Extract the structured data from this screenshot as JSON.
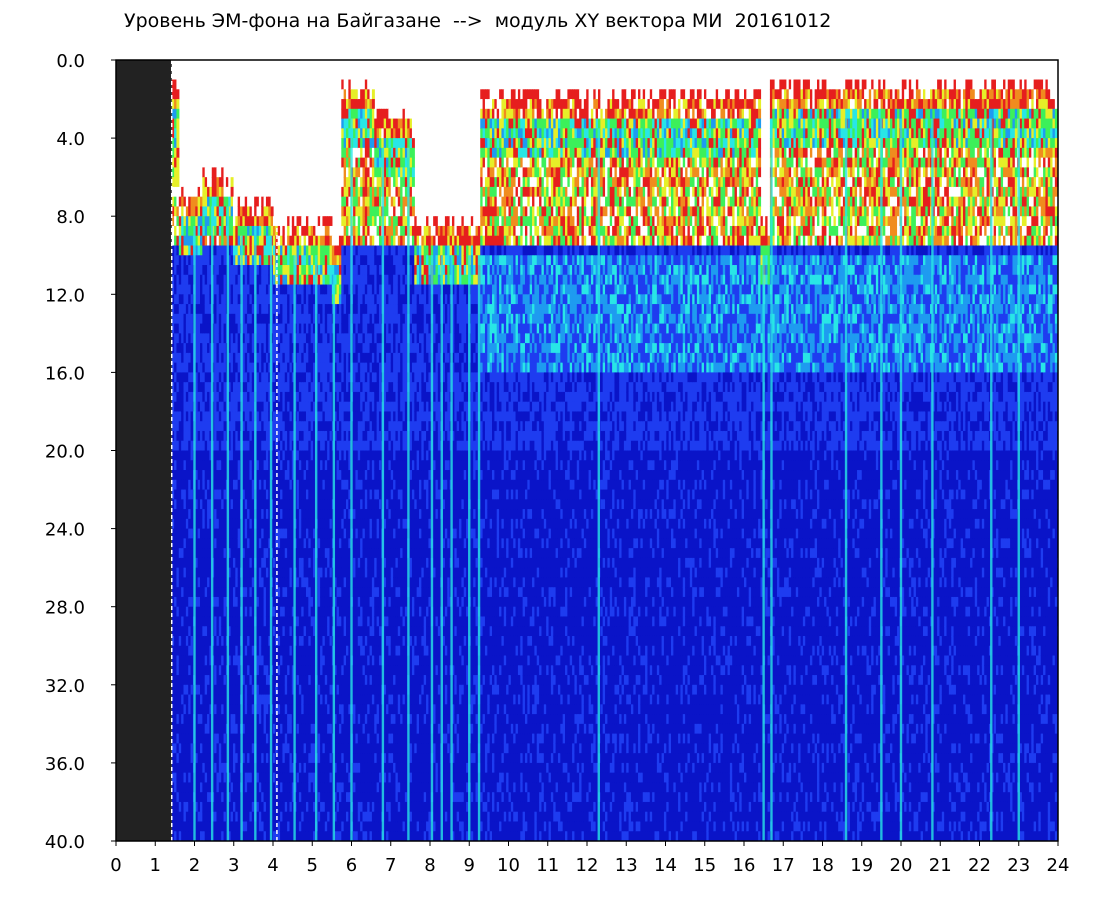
{
  "chart_data": {
    "type": "heatmap",
    "title": "Уровень ЭМ-фона на Байгазане  -->  модуль XY вектора МИ  20161012",
    "xlabel": "",
    "ylabel": "",
    "xlim": [
      0,
      24
    ],
    "ylim": [
      0.0,
      40.0
    ],
    "y_inverted": true,
    "x_ticks": [
      "0",
      "1",
      "2",
      "3",
      "4",
      "5",
      "6",
      "7",
      "8",
      "9",
      "10",
      "11",
      "12",
      "13",
      "14",
      "15",
      "16",
      "17",
      "18",
      "19",
      "20",
      "21",
      "22",
      "23",
      "24"
    ],
    "y_ticks": [
      "0.0",
      "4.0",
      "8.0",
      "12.0",
      "16.0",
      "20.0",
      "24.0",
      "28.0",
      "32.0",
      "36.0",
      "40.0"
    ],
    "grid": false,
    "colorscale": [
      "#0a14c8",
      "#1e3cf0",
      "#1e9bf0",
      "#28e6e6",
      "#3cf05a",
      "#e6ef28",
      "#f08c1e",
      "#e61e1e",
      "#ffffff"
    ],
    "no_data_interval": [
      0.0,
      1.42
    ],
    "no_data_color": "#222222",
    "vertical_markers": [
      1.42,
      4.1
    ],
    "background_floor_band": [
      10.0,
      16.0
    ],
    "signal_top": [
      {
        "x0": 1.42,
        "x1": 1.6,
        "top": 1.0
      },
      {
        "x0": 1.6,
        "x1": 2.2,
        "top": 6.5
      },
      {
        "x0": 2.2,
        "x1": 3.0,
        "top": 5.5
      },
      {
        "x0": 3.0,
        "x1": 4.0,
        "top": 7.0
      },
      {
        "x0": 4.0,
        "x1": 5.5,
        "top": 8.0
      },
      {
        "x0": 5.5,
        "x1": 5.75,
        "top": 9.0
      },
      {
        "x0": 5.75,
        "x1": 6.6,
        "top": 1.0
      },
      {
        "x0": 6.6,
        "x1": 7.6,
        "top": 2.5
      },
      {
        "x0": 7.6,
        "x1": 9.3,
        "top": 8.0
      },
      {
        "x0": 9.3,
        "x1": 16.4,
        "top": 1.5
      },
      {
        "x0": 16.4,
        "x1": 16.65,
        "top": 8.0
      },
      {
        "x0": 16.65,
        "x1": 24.0,
        "top": 1.0
      }
    ],
    "vertical_streaks_x": [
      2.0,
      2.45,
      2.85,
      3.2,
      3.55,
      3.95,
      4.55,
      5.1,
      5.55,
      6.0,
      6.8,
      7.45,
      8.05,
      8.3,
      8.55,
      9.0,
      9.25,
      12.3,
      16.5,
      16.7,
      18.6,
      19.5,
      20.0,
      20.8,
      22.3,
      23.0
    ]
  }
}
